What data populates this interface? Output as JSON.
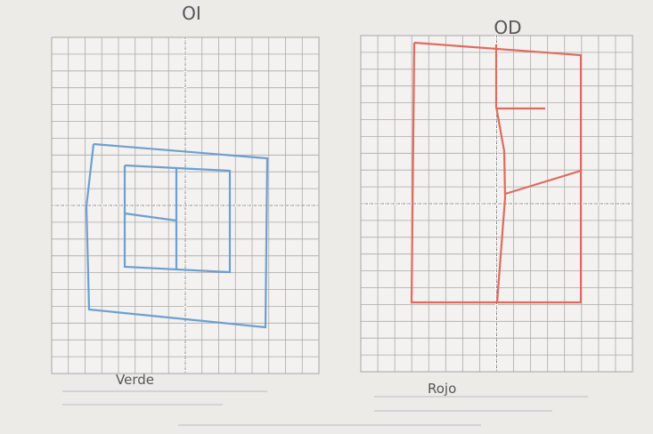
{
  "left_chart": {
    "label": "OI",
    "name": "Verde"
  },
  "right_chart": {
    "label": "OD",
    "name": "Rojo"
  }
}
